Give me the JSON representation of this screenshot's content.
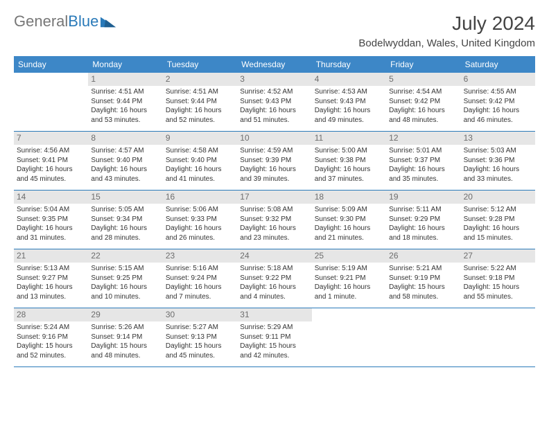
{
  "logo": {
    "part1": "General",
    "part2": "Blue"
  },
  "title": "July 2024",
  "location": "Bodelwyddan, Wales, United Kingdom",
  "colors": {
    "header_bg": "#3d87c7",
    "header_text": "#ffffff",
    "rule": "#2a7ab9",
    "daynum_bg": "#e6e6e6",
    "daynum_text": "#6d6d6d",
    "body_text": "#333333",
    "title_text": "#444444",
    "logo_gray": "#777777",
    "logo_blue": "#2a7ab9"
  },
  "dayNames": [
    "Sunday",
    "Monday",
    "Tuesday",
    "Wednesday",
    "Thursday",
    "Friday",
    "Saturday"
  ],
  "weeks": [
    [
      null,
      {
        "n": "1",
        "sr": "Sunrise: 4:51 AM",
        "ss": "Sunset: 9:44 PM",
        "d1": "Daylight: 16 hours",
        "d2": "and 53 minutes."
      },
      {
        "n": "2",
        "sr": "Sunrise: 4:51 AM",
        "ss": "Sunset: 9:44 PM",
        "d1": "Daylight: 16 hours",
        "d2": "and 52 minutes."
      },
      {
        "n": "3",
        "sr": "Sunrise: 4:52 AM",
        "ss": "Sunset: 9:43 PM",
        "d1": "Daylight: 16 hours",
        "d2": "and 51 minutes."
      },
      {
        "n": "4",
        "sr": "Sunrise: 4:53 AM",
        "ss": "Sunset: 9:43 PM",
        "d1": "Daylight: 16 hours",
        "d2": "and 49 minutes."
      },
      {
        "n": "5",
        "sr": "Sunrise: 4:54 AM",
        "ss": "Sunset: 9:42 PM",
        "d1": "Daylight: 16 hours",
        "d2": "and 48 minutes."
      },
      {
        "n": "6",
        "sr": "Sunrise: 4:55 AM",
        "ss": "Sunset: 9:42 PM",
        "d1": "Daylight: 16 hours",
        "d2": "and 46 minutes."
      }
    ],
    [
      {
        "n": "7",
        "sr": "Sunrise: 4:56 AM",
        "ss": "Sunset: 9:41 PM",
        "d1": "Daylight: 16 hours",
        "d2": "and 45 minutes."
      },
      {
        "n": "8",
        "sr": "Sunrise: 4:57 AM",
        "ss": "Sunset: 9:40 PM",
        "d1": "Daylight: 16 hours",
        "d2": "and 43 minutes."
      },
      {
        "n": "9",
        "sr": "Sunrise: 4:58 AM",
        "ss": "Sunset: 9:40 PM",
        "d1": "Daylight: 16 hours",
        "d2": "and 41 minutes."
      },
      {
        "n": "10",
        "sr": "Sunrise: 4:59 AM",
        "ss": "Sunset: 9:39 PM",
        "d1": "Daylight: 16 hours",
        "d2": "and 39 minutes."
      },
      {
        "n": "11",
        "sr": "Sunrise: 5:00 AM",
        "ss": "Sunset: 9:38 PM",
        "d1": "Daylight: 16 hours",
        "d2": "and 37 minutes."
      },
      {
        "n": "12",
        "sr": "Sunrise: 5:01 AM",
        "ss": "Sunset: 9:37 PM",
        "d1": "Daylight: 16 hours",
        "d2": "and 35 minutes."
      },
      {
        "n": "13",
        "sr": "Sunrise: 5:03 AM",
        "ss": "Sunset: 9:36 PM",
        "d1": "Daylight: 16 hours",
        "d2": "and 33 minutes."
      }
    ],
    [
      {
        "n": "14",
        "sr": "Sunrise: 5:04 AM",
        "ss": "Sunset: 9:35 PM",
        "d1": "Daylight: 16 hours",
        "d2": "and 31 minutes."
      },
      {
        "n": "15",
        "sr": "Sunrise: 5:05 AM",
        "ss": "Sunset: 9:34 PM",
        "d1": "Daylight: 16 hours",
        "d2": "and 28 minutes."
      },
      {
        "n": "16",
        "sr": "Sunrise: 5:06 AM",
        "ss": "Sunset: 9:33 PM",
        "d1": "Daylight: 16 hours",
        "d2": "and 26 minutes."
      },
      {
        "n": "17",
        "sr": "Sunrise: 5:08 AM",
        "ss": "Sunset: 9:32 PM",
        "d1": "Daylight: 16 hours",
        "d2": "and 23 minutes."
      },
      {
        "n": "18",
        "sr": "Sunrise: 5:09 AM",
        "ss": "Sunset: 9:30 PM",
        "d1": "Daylight: 16 hours",
        "d2": "and 21 minutes."
      },
      {
        "n": "19",
        "sr": "Sunrise: 5:11 AM",
        "ss": "Sunset: 9:29 PM",
        "d1": "Daylight: 16 hours",
        "d2": "and 18 minutes."
      },
      {
        "n": "20",
        "sr": "Sunrise: 5:12 AM",
        "ss": "Sunset: 9:28 PM",
        "d1": "Daylight: 16 hours",
        "d2": "and 15 minutes."
      }
    ],
    [
      {
        "n": "21",
        "sr": "Sunrise: 5:13 AM",
        "ss": "Sunset: 9:27 PM",
        "d1": "Daylight: 16 hours",
        "d2": "and 13 minutes."
      },
      {
        "n": "22",
        "sr": "Sunrise: 5:15 AM",
        "ss": "Sunset: 9:25 PM",
        "d1": "Daylight: 16 hours",
        "d2": "and 10 minutes."
      },
      {
        "n": "23",
        "sr": "Sunrise: 5:16 AM",
        "ss": "Sunset: 9:24 PM",
        "d1": "Daylight: 16 hours",
        "d2": "and 7 minutes."
      },
      {
        "n": "24",
        "sr": "Sunrise: 5:18 AM",
        "ss": "Sunset: 9:22 PM",
        "d1": "Daylight: 16 hours",
        "d2": "and 4 minutes."
      },
      {
        "n": "25",
        "sr": "Sunrise: 5:19 AM",
        "ss": "Sunset: 9:21 PM",
        "d1": "Daylight: 16 hours",
        "d2": "and 1 minute."
      },
      {
        "n": "26",
        "sr": "Sunrise: 5:21 AM",
        "ss": "Sunset: 9:19 PM",
        "d1": "Daylight: 15 hours",
        "d2": "and 58 minutes."
      },
      {
        "n": "27",
        "sr": "Sunrise: 5:22 AM",
        "ss": "Sunset: 9:18 PM",
        "d1": "Daylight: 15 hours",
        "d2": "and 55 minutes."
      }
    ],
    [
      {
        "n": "28",
        "sr": "Sunrise: 5:24 AM",
        "ss": "Sunset: 9:16 PM",
        "d1": "Daylight: 15 hours",
        "d2": "and 52 minutes."
      },
      {
        "n": "29",
        "sr": "Sunrise: 5:26 AM",
        "ss": "Sunset: 9:14 PM",
        "d1": "Daylight: 15 hours",
        "d2": "and 48 minutes."
      },
      {
        "n": "30",
        "sr": "Sunrise: 5:27 AM",
        "ss": "Sunset: 9:13 PM",
        "d1": "Daylight: 15 hours",
        "d2": "and 45 minutes."
      },
      {
        "n": "31",
        "sr": "Sunrise: 5:29 AM",
        "ss": "Sunset: 9:11 PM",
        "d1": "Daylight: 15 hours",
        "d2": "and 42 minutes."
      },
      null,
      null,
      null
    ]
  ]
}
